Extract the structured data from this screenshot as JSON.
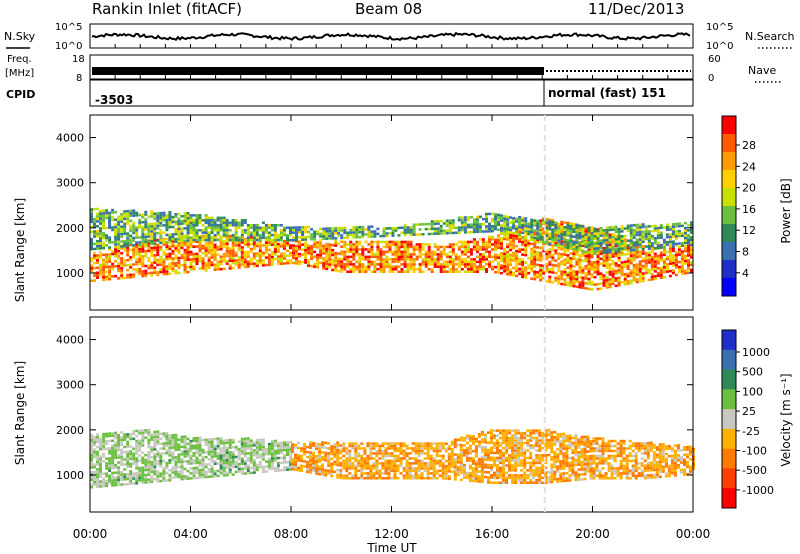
{
  "header": {
    "station": "Rankin Inlet (fitACF)",
    "beam": "Beam 08",
    "date": "11/Dec/2013"
  },
  "strips": {
    "nsky": {
      "label": "N.Sky",
      "ticks": [
        "10^5",
        "10^0"
      ]
    },
    "nsearch": {
      "label": "N.Search",
      "ticks": [
        "10^5",
        "10^0"
      ]
    },
    "freq": {
      "label_line1": "Freq.",
      "label_line2": "[MHz]",
      "ticks": [
        "18",
        "8"
      ]
    },
    "nave": {
      "label": "Nave",
      "ticks": [
        "60",
        "0"
      ]
    },
    "cpid": {
      "label": "CPID",
      "segments": [
        {
          "text": "-3503",
          "start_hours": 0,
          "end_hours": 18.1
        },
        {
          "text": "normal (fast) 151",
          "start_hours": 18.1,
          "end_hours": 24
        }
      ]
    }
  },
  "x_axis": {
    "label": "Time UT",
    "ticks": [
      "00:00",
      "04:00",
      "08:00",
      "12:00",
      "16:00",
      "20:00",
      "00:00"
    ],
    "range_hours": [
      0,
      24
    ]
  },
  "colorbars": {
    "power": {
      "label": "Power [dB]",
      "ticks": [
        "28",
        "24",
        "20",
        "16",
        "12",
        "8",
        "4"
      ],
      "colors": [
        "#ff0000",
        "#ff5a00",
        "#ff9a00",
        "#ffd000",
        "#c8e000",
        "#6cc040",
        "#2f8a5a",
        "#3a6fb0",
        "#1e2fc8",
        "#0000ff"
      ]
    },
    "velocity": {
      "label": "Velocity [m s⁻¹]",
      "ticks": [
        "1000",
        "500",
        "100",
        "25",
        "-25",
        "-100",
        "-500",
        "-1000"
      ],
      "colors": [
        "#1e2fc8",
        "#3a6fb0",
        "#2f8a5a",
        "#6cc040",
        "#c8c8c0",
        "#ffb000",
        "#ff7a00",
        "#ff4000",
        "#ff0000"
      ]
    }
  },
  "chart_data": [
    {
      "type": "heatmap",
      "title": "Power",
      "xlabel": "Time UT",
      "ylabel": "Slant Range [km]",
      "y_ticks": [
        "1000",
        "2000",
        "3000",
        "4000"
      ],
      "xlim": [
        0,
        24
      ],
      "ylim": [
        180,
        4500
      ],
      "colorbar_label": "Power [dB]",
      "colorbar_range": [
        0,
        30
      ],
      "bands": [
        {
          "t": [
            0,
            2,
            4,
            6,
            8,
            10,
            12,
            14,
            16,
            18,
            20,
            22,
            24
          ],
          "lo": [
            800,
            900,
            1000,
            1100,
            1200,
            1000,
            1000,
            1000,
            1000,
            800,
            600,
            800,
            1000
          ],
          "hi": [
            1400,
            1700,
            1800,
            1800,
            1700,
            1700,
            1700,
            1600,
            1800,
            2200,
            2000,
            1600,
            1600
          ],
          "value": 24
        },
        {
          "t": [
            0,
            4,
            8,
            12,
            16,
            20,
            24
          ],
          "lo": [
            1500,
            1700,
            1700,
            1800,
            1900,
            1400,
            1600
          ],
          "hi": [
            2400,
            2300,
            2000,
            2000,
            2300,
            2000,
            2100
          ],
          "value": 12
        }
      ],
      "gaps_hours": [
        18.1
      ]
    },
    {
      "type": "heatmap",
      "title": "Velocity",
      "xlabel": "Time UT",
      "ylabel": "Slant Range [km]",
      "y_ticks": [
        "1000",
        "2000",
        "3000",
        "4000"
      ],
      "xlim": [
        0,
        24
      ],
      "ylim": [
        180,
        4500
      ],
      "colorbar_label": "Velocity [m s⁻¹]",
      "colorbar_range": [
        -1000,
        1000
      ],
      "bands": [
        {
          "t": [
            0,
            2,
            4,
            6,
            8
          ],
          "lo": [
            700,
            800,
            900,
            1000,
            1100
          ],
          "hi": [
            1900,
            2000,
            1800,
            1800,
            1700
          ],
          "value": 150
        },
        {
          "t": [
            8,
            10,
            12,
            14,
            16,
            18,
            20,
            22,
            24
          ],
          "lo": [
            1100,
            900,
            900,
            900,
            800,
            800,
            900,
            900,
            1000
          ],
          "hi": [
            1700,
            1700,
            1700,
            1700,
            2000,
            2000,
            1800,
            1700,
            1600
          ],
          "value": -300
        }
      ],
      "gaps_hours": [
        18.1
      ]
    }
  ]
}
